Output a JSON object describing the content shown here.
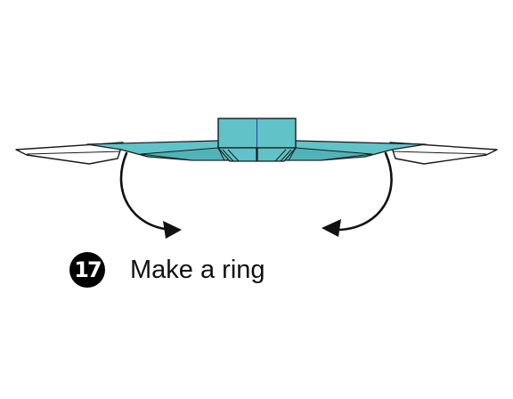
{
  "step": {
    "number": "17",
    "instruction": "Make a ring"
  },
  "colors": {
    "paper_teal": "#5fc3c8",
    "paper_white": "#ffffff",
    "outline": "#1a1a1a",
    "crease": "#2b3aa0",
    "arrow": "#111111"
  },
  "icons": [
    "fold-arrow-left-icon",
    "fold-arrow-right-icon"
  ]
}
